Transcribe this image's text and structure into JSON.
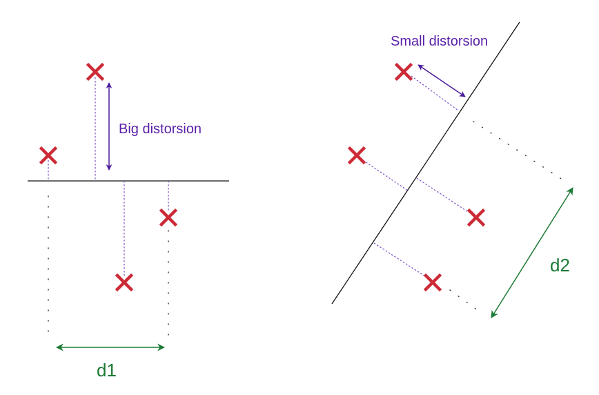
{
  "left_panel": {
    "big_distorsion_label": "Big distorsion",
    "d1_label": "d1"
  },
  "right_panel": {
    "small_distorsion_label": "Small distorsion",
    "d2_label": "d2"
  },
  "colors": {
    "cross": "#cc2a36",
    "annotation": "#5a1fa8",
    "distance": "#1d7a35",
    "axis": "#111111"
  }
}
